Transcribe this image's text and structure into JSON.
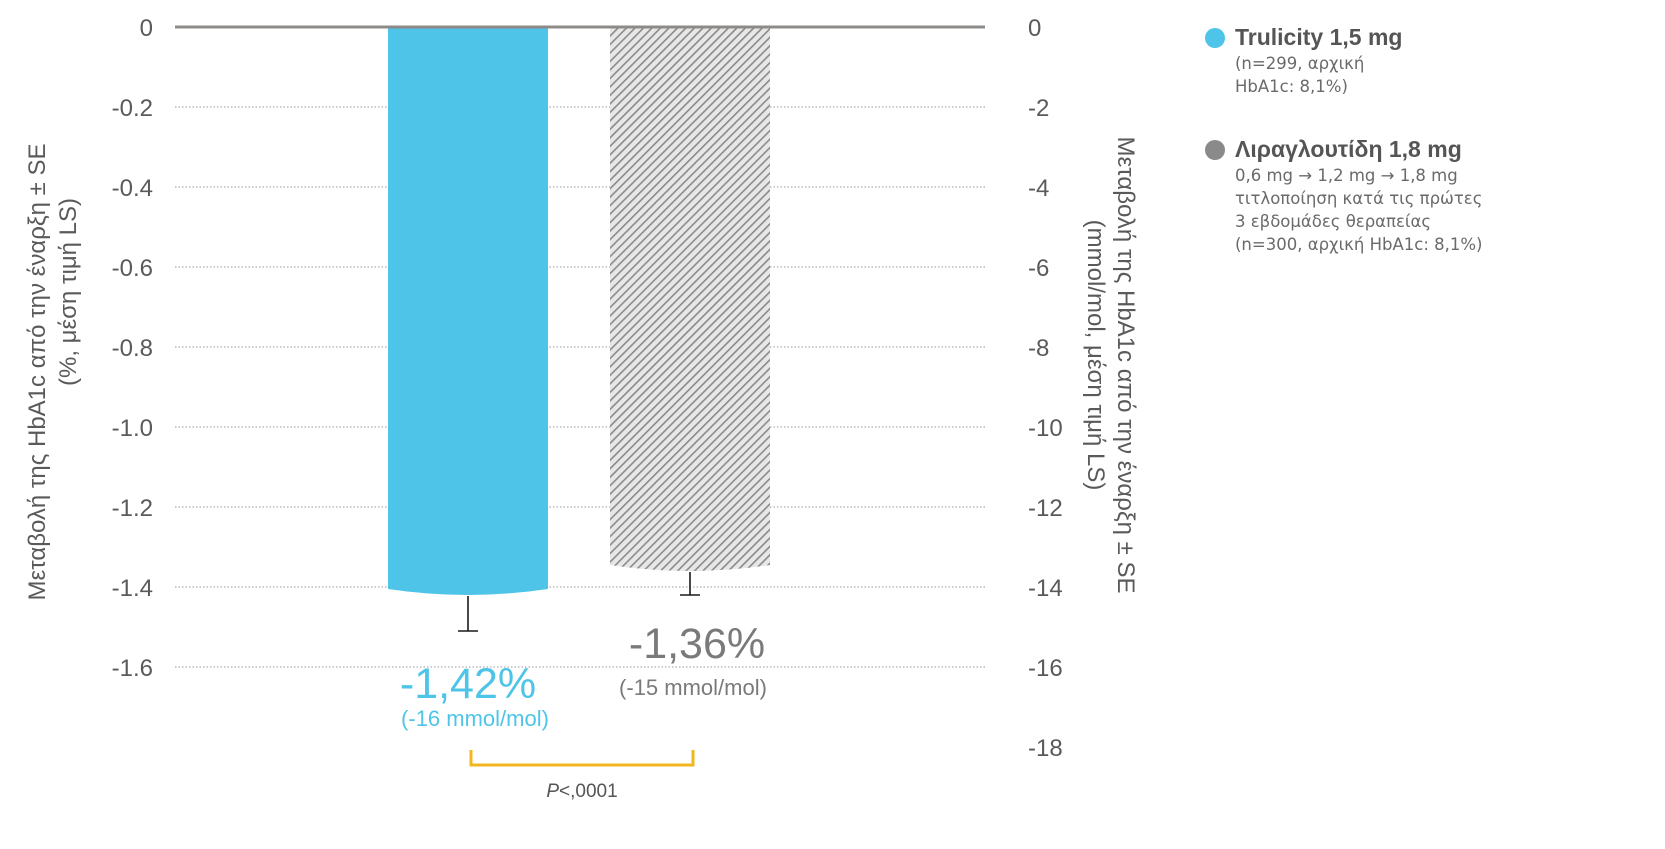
{
  "chart_data": {
    "type": "bar",
    "categories": [
      "Trulicity 1,5 mg",
      "Λιραγλουτίδη 1,8 mg"
    ],
    "values": [
      -1.42,
      -1.36
    ],
    "error_bars": [
      0.09,
      0.06
    ],
    "value_labels": [
      "-1,42%",
      "-1,36%"
    ],
    "value_sublabels": [
      "(-16 mmol/mol)",
      "(-15 mmol/mol)"
    ],
    "ylim": [
      -1.6,
      0
    ],
    "yticks": [
      "0",
      "-0.2",
      "-0.4",
      "-0.6",
      "-0.8",
      "-1.0",
      "-1.2",
      "-1.4",
      "-1.6"
    ],
    "y2ticks": [
      "0",
      "-2",
      "-4",
      "-6",
      "-8",
      "-10",
      "-12",
      "-14",
      "-16",
      "-18"
    ],
    "ylabel_line1": "Μεταβολή της HbA1c από την έναρξη  ± SE",
    "ylabel_line2": "(%, μέση τιμή LS)",
    "y2label_line1": "Μεταβολή της HbA1c από την έναρξη  ± SE",
    "y2label_line2": "(mmol/mol, μέση τιμή LS)",
    "pvalue_prefix": "P",
    "pvalue_rest": "<,0001",
    "grid": "horizontal-dotted",
    "legend_position": "right",
    "colors": {
      "trulicity": "#4ec5e8",
      "liraglutide": "#8a8a8a",
      "bracket": "#f2b71f",
      "axis_text": "#5a5a5a"
    }
  },
  "legend": {
    "items": [
      {
        "title": "Trulicity 1,5 mg",
        "color": "#4ec5e8",
        "lines": [
          "(n=299, αρχική",
          "HbA1c: 8,1%)"
        ]
      },
      {
        "title": "Λιραγλουτίδη 1,8 mg",
        "color": "#8a8a8a",
        "lines": [
          "0,6 mg → 1,2 mg → 1,8 mg",
          "τιτλοποίηση κατά τις πρώτες",
          "3 εβδομάδες θεραπείας",
          "(n=300, αρχική HbA1c: 8,1%)"
        ]
      }
    ]
  }
}
